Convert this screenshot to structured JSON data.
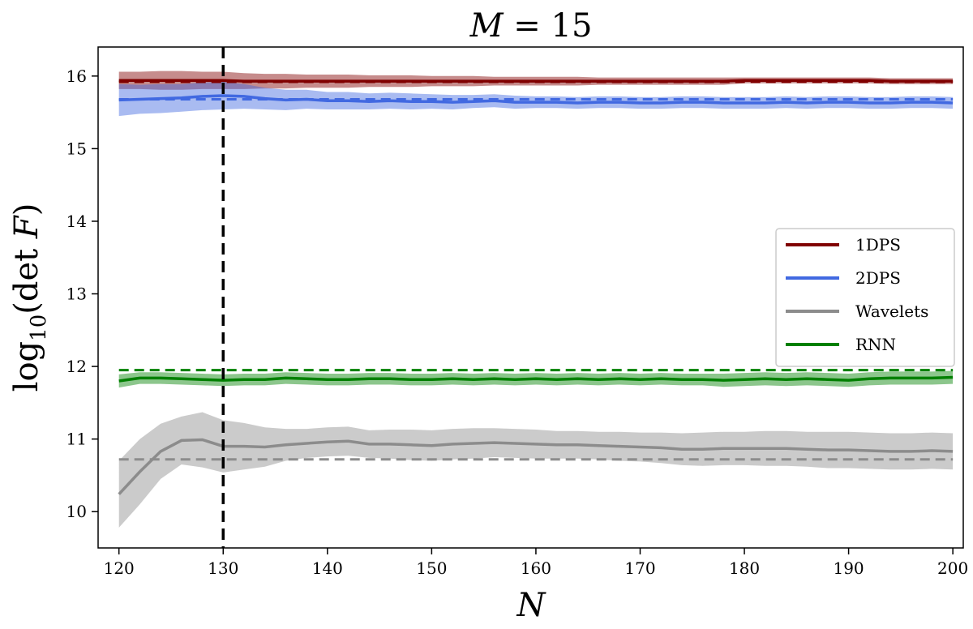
{
  "chart_data": {
    "type": "line",
    "title": "M = 15",
    "xlabel": "N",
    "ylabel": "log10(det F)",
    "xlim": [
      118,
      201
    ],
    "ylim": [
      9.5,
      16.4
    ],
    "xticks": [
      120,
      130,
      140,
      150,
      160,
      170,
      180,
      190,
      200
    ],
    "yticks": [
      10,
      11,
      12,
      13,
      14,
      15,
      16
    ],
    "grid": false,
    "legend_position": "center-right",
    "vline": {
      "x": 130,
      "color": "#000000",
      "style": "dashed"
    },
    "x": [
      120,
      122,
      124,
      126,
      128,
      130,
      132,
      134,
      136,
      138,
      140,
      142,
      144,
      146,
      148,
      150,
      152,
      154,
      156,
      158,
      160,
      162,
      164,
      166,
      168,
      170,
      172,
      174,
      176,
      178,
      180,
      182,
      184,
      186,
      188,
      190,
      192,
      194,
      196,
      198,
      200
    ],
    "series": [
      {
        "name": "1DPS",
        "color": "#800000",
        "values": [
          15.94,
          15.94,
          15.94,
          15.94,
          15.94,
          15.94,
          15.93,
          15.93,
          15.93,
          15.93,
          15.93,
          15.93,
          15.93,
          15.93,
          15.93,
          15.93,
          15.93,
          15.93,
          15.93,
          15.93,
          15.93,
          15.93,
          15.93,
          15.93,
          15.93,
          15.93,
          15.93,
          15.93,
          15.93,
          15.93,
          15.94,
          15.94,
          15.94,
          15.94,
          15.94,
          15.94,
          15.94,
          15.93,
          15.93,
          15.93,
          15.93
        ],
        "band_half_width": [
          0.12,
          0.12,
          0.13,
          0.13,
          0.12,
          0.12,
          0.11,
          0.1,
          0.1,
          0.09,
          0.09,
          0.09,
          0.08,
          0.08,
          0.08,
          0.07,
          0.07,
          0.07,
          0.06,
          0.06,
          0.06,
          0.06,
          0.06,
          0.05,
          0.05,
          0.05,
          0.05,
          0.05,
          0.05,
          0.05,
          0.04,
          0.04,
          0.04,
          0.04,
          0.04,
          0.04,
          0.04,
          0.04,
          0.04,
          0.04,
          0.04
        ],
        "reference": 15.92
      },
      {
        "name": "2DPS",
        "color": "#4169e1",
        "values": [
          15.67,
          15.68,
          15.69,
          15.7,
          15.72,
          15.73,
          15.72,
          15.69,
          15.67,
          15.68,
          15.66,
          15.66,
          15.65,
          15.66,
          15.65,
          15.65,
          15.64,
          15.65,
          15.66,
          15.64,
          15.64,
          15.64,
          15.63,
          15.64,
          15.64,
          15.63,
          15.63,
          15.64,
          15.64,
          15.63,
          15.63,
          15.63,
          15.64,
          15.63,
          15.64,
          15.64,
          15.63,
          15.63,
          15.64,
          15.64,
          15.63
        ],
        "band_half_width": [
          0.22,
          0.2,
          0.2,
          0.19,
          0.19,
          0.19,
          0.17,
          0.15,
          0.14,
          0.13,
          0.12,
          0.12,
          0.11,
          0.11,
          0.11,
          0.1,
          0.1,
          0.09,
          0.09,
          0.09,
          0.08,
          0.08,
          0.08,
          0.08,
          0.08,
          0.08,
          0.08,
          0.08,
          0.08,
          0.08,
          0.08,
          0.08,
          0.08,
          0.08,
          0.08,
          0.08,
          0.08,
          0.08,
          0.08,
          0.08,
          0.08
        ],
        "reference": 15.68
      },
      {
        "name": "Wavelets",
        "color": "#8c8c8c",
        "values": [
          10.24,
          10.55,
          10.83,
          10.98,
          10.99,
          10.9,
          10.9,
          10.89,
          10.92,
          10.94,
          10.96,
          10.97,
          10.93,
          10.93,
          10.92,
          10.91,
          10.93,
          10.94,
          10.95,
          10.94,
          10.93,
          10.92,
          10.92,
          10.91,
          10.9,
          10.89,
          10.88,
          10.86,
          10.86,
          10.87,
          10.87,
          10.87,
          10.87,
          10.86,
          10.85,
          10.85,
          10.84,
          10.83,
          10.83,
          10.84,
          10.83
        ],
        "band_half_width": [
          0.46,
          0.45,
          0.38,
          0.33,
          0.38,
          0.36,
          0.32,
          0.27,
          0.22,
          0.2,
          0.2,
          0.2,
          0.19,
          0.2,
          0.21,
          0.21,
          0.21,
          0.21,
          0.2,
          0.2,
          0.2,
          0.19,
          0.19,
          0.19,
          0.2,
          0.2,
          0.21,
          0.22,
          0.23,
          0.23,
          0.23,
          0.24,
          0.24,
          0.24,
          0.25,
          0.25,
          0.25,
          0.25,
          0.25,
          0.25,
          0.25
        ],
        "reference": 10.72
      },
      {
        "name": "RNN",
        "color": "#008000",
        "values": [
          11.8,
          11.84,
          11.84,
          11.83,
          11.82,
          11.81,
          11.82,
          11.82,
          11.84,
          11.83,
          11.82,
          11.82,
          11.83,
          11.83,
          11.82,
          11.82,
          11.83,
          11.82,
          11.83,
          11.82,
          11.83,
          11.82,
          11.83,
          11.82,
          11.83,
          11.82,
          11.83,
          11.82,
          11.82,
          11.81,
          11.82,
          11.83,
          11.82,
          11.83,
          11.82,
          11.81,
          11.83,
          11.84,
          11.84,
          11.84,
          11.85
        ],
        "band_half_width": [
          0.09,
          0.08,
          0.08,
          0.08,
          0.08,
          0.08,
          0.08,
          0.08,
          0.08,
          0.08,
          0.08,
          0.08,
          0.08,
          0.08,
          0.08,
          0.08,
          0.08,
          0.08,
          0.08,
          0.08,
          0.08,
          0.08,
          0.08,
          0.08,
          0.08,
          0.08,
          0.08,
          0.08,
          0.08,
          0.09,
          0.09,
          0.09,
          0.09,
          0.09,
          0.09,
          0.09,
          0.09,
          0.09,
          0.09,
          0.09,
          0.09
        ],
        "reference": 11.95
      }
    ]
  }
}
